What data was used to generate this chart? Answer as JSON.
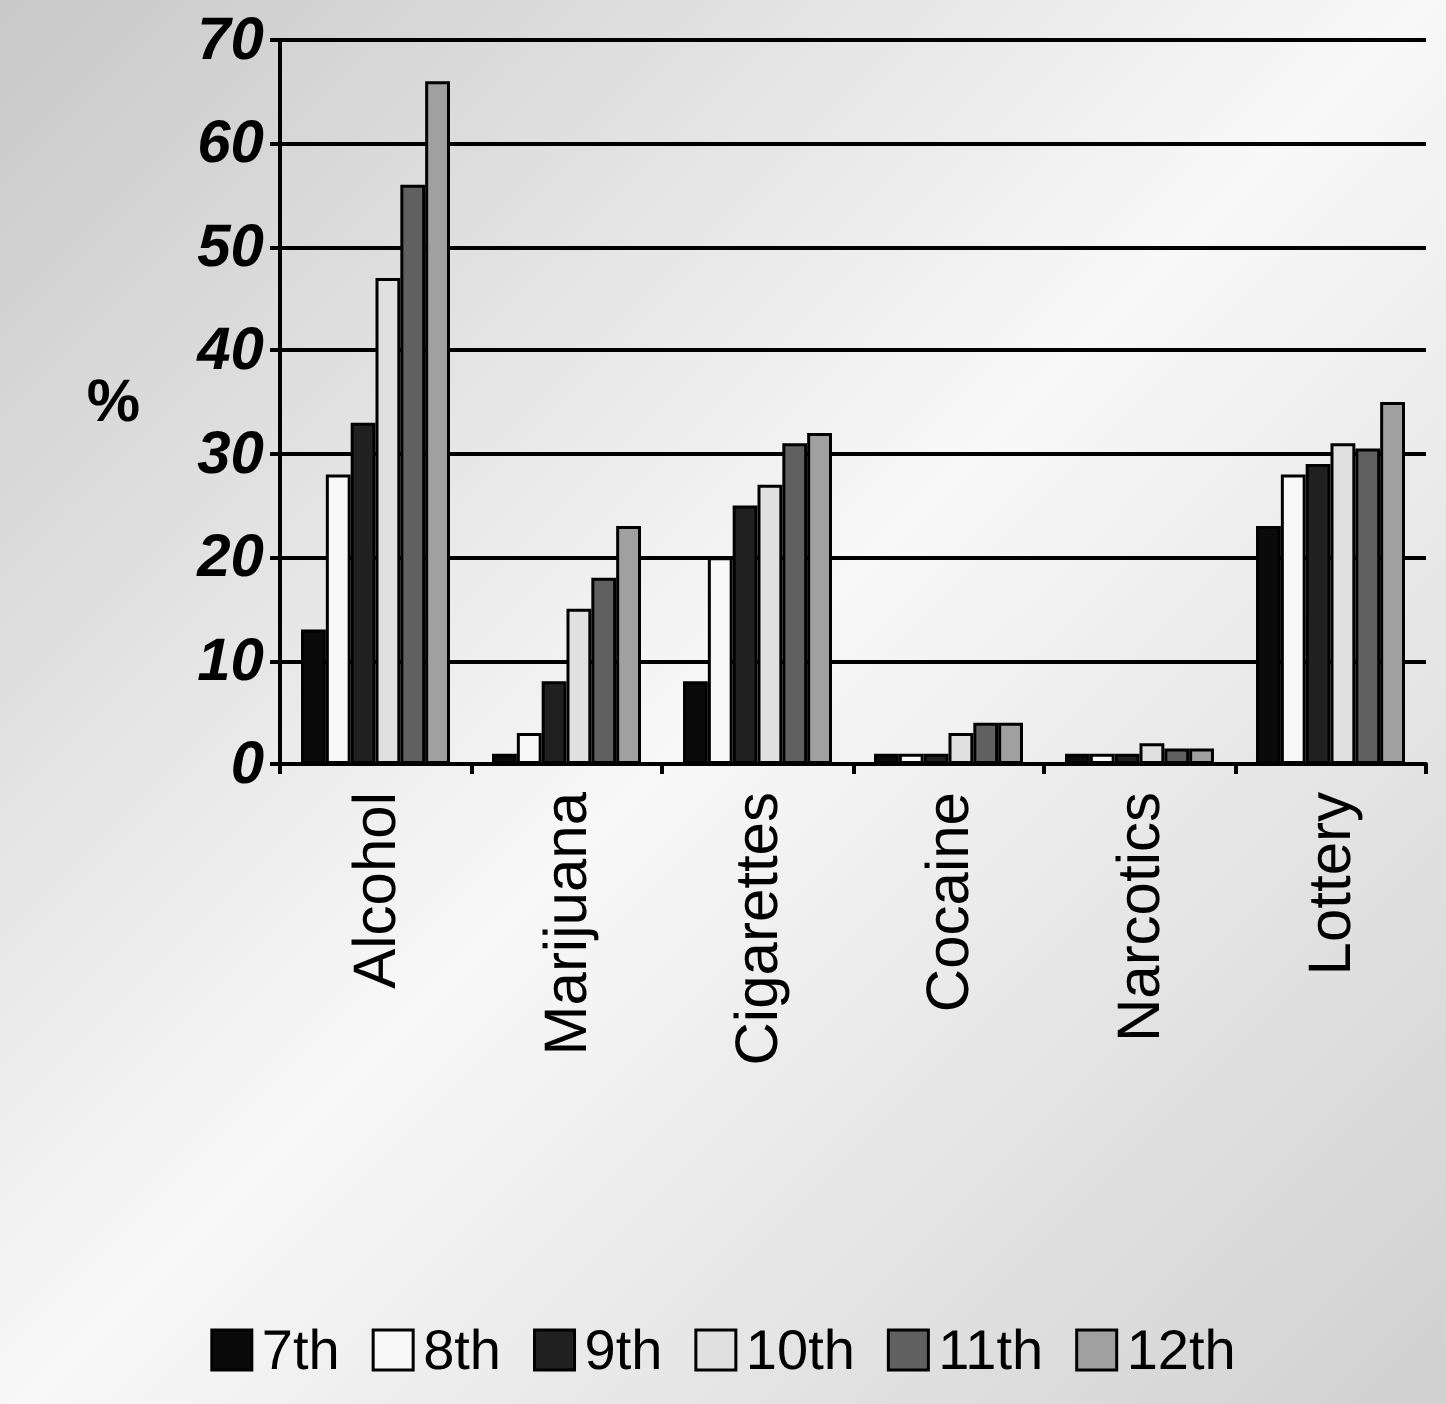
{
  "chart_data": {
    "type": "bar",
    "ylabel": "%",
    "categories": [
      "Alcohol",
      "Marijuana",
      "Cigarettes",
      "Cocaine",
      "Narcotics",
      "Lottery"
    ],
    "series": [
      {
        "name": "7th",
        "color": "#0a0a0a",
        "values": [
          13,
          1,
          8,
          1,
          1,
          23
        ]
      },
      {
        "name": "8th",
        "color": "#f8f8f8",
        "values": [
          28,
          3,
          20,
          1,
          1,
          28
        ]
      },
      {
        "name": "9th",
        "color": "#202020",
        "values": [
          33,
          8,
          25,
          1,
          1,
          29
        ]
      },
      {
        "name": "10th",
        "color": "#e0e0e0",
        "values": [
          47,
          15,
          27,
          3,
          2,
          31
        ]
      },
      {
        "name": "11th",
        "color": "#606060",
        "values": [
          56,
          18,
          31,
          4,
          1.5,
          30.5
        ]
      },
      {
        "name": "12th",
        "color": "#a0a0a0",
        "values": [
          66,
          23,
          32,
          4,
          1.5,
          35
        ]
      }
    ],
    "ylim": [
      0,
      70
    ],
    "yticks": [
      0,
      10,
      20,
      30,
      40,
      50,
      60,
      70
    ],
    "grid": "y",
    "legend": "bottom"
  }
}
